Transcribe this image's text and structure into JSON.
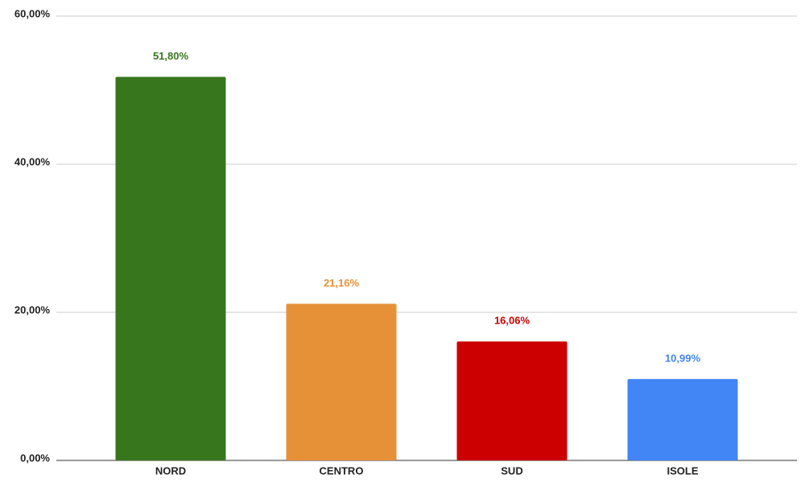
{
  "chart_data": {
    "type": "bar",
    "categories": [
      "NORD",
      "CENTRO",
      "SUD",
      "ISOLE"
    ],
    "values": [
      51.8,
      21.16,
      16.06,
      10.99
    ],
    "value_labels": [
      "51,80%",
      "21,16%",
      "16,06%",
      "10,99%"
    ],
    "colors": [
      "#38761d",
      "#e69138",
      "#cc0000",
      "#4285f4"
    ],
    "ylim": [
      0,
      60
    ],
    "yticks": [
      {
        "value": 0,
        "label": "0,00%"
      },
      {
        "value": 20,
        "label": "20,00%"
      },
      {
        "value": 40,
        "label": "40,00%"
      },
      {
        "value": 60,
        "label": "60,00%"
      }
    ],
    "grid": true
  }
}
